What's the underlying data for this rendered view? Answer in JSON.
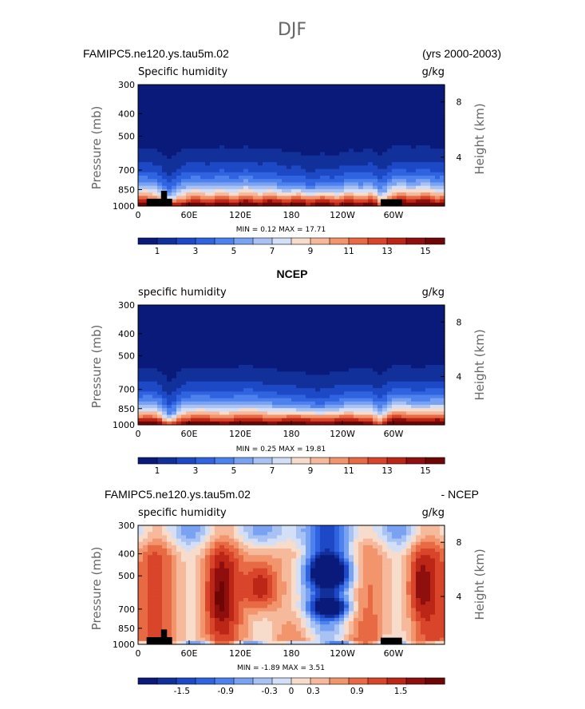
{
  "figure_title": "DJF",
  "chart_data": [
    {
      "type": "heatmap",
      "title_left": "FAMIPC5.ne120.ys.tau5m.02",
      "title_center": "",
      "title_right": "(yrs 2000-2003)",
      "variable_label": "Specific humidity",
      "units": "g/kg",
      "ylabel": "Pressure (mb)",
      "ylabel_right": "Height (km)",
      "ylim": [
        1000,
        300
      ],
      "yticks": [
        "300",
        "400",
        "500",
        "700",
        "850",
        "1000"
      ],
      "height_ticks": [
        "8",
        "4"
      ],
      "xticks": [
        "0",
        "60E",
        "120E",
        "180",
        "120W",
        "60W"
      ],
      "stats": "MIN =    0.12   MAX =    17.71",
      "colorbar_labels": [
        "1",
        "3",
        "5",
        "7",
        "9",
        "11",
        "13",
        "15"
      ],
      "colorbar_min": 0,
      "colorbar_max": 16,
      "kind": "q"
    },
    {
      "type": "heatmap",
      "title_left": "",
      "title_center": "NCEP",
      "title_right": "",
      "variable_label": "specific humidity",
      "units": "g/kg",
      "ylabel": "Pressure (mb)",
      "ylabel_right": "Height (km)",
      "ylim": [
        1000,
        300
      ],
      "yticks": [
        "300",
        "400",
        "500",
        "700",
        "850",
        "1000"
      ],
      "height_ticks": [
        "8",
        "4"
      ],
      "xticks": [
        "0",
        "60E",
        "120E",
        "180",
        "120W",
        "60W"
      ],
      "stats": "MIN =    0.25   MAX =    19.81",
      "colorbar_labels": [
        "1",
        "3",
        "5",
        "7",
        "9",
        "11",
        "13",
        "15"
      ],
      "colorbar_min": 0,
      "colorbar_max": 16,
      "kind": "q"
    },
    {
      "type": "heatmap",
      "title_left": "FAMIPC5.ne120.ys.tau5m.02",
      "title_center": "",
      "title_right": "- NCEP",
      "variable_label": "specific humidity",
      "units": "g/kg",
      "ylabel": "Pressure (mb)",
      "ylabel_right": "Height (km)",
      "ylim": [
        1000,
        300
      ],
      "yticks": [
        "300",
        "400",
        "500",
        "700",
        "850",
        "1000"
      ],
      "height_ticks": [
        "8",
        "4"
      ],
      "xticks": [
        "0",
        "60E",
        "120E",
        "180",
        "120W",
        "60W"
      ],
      "stats": "MIN =   -1.89   MAX =    3.51",
      "colorbar_labels": [
        "-1.5",
        "-0.9",
        "-0.3",
        "0",
        "0.3",
        "0.9",
        "1.5"
      ],
      "colorbar_min": -2.1,
      "colorbar_max": 2.1,
      "kind": "diff"
    }
  ],
  "colors": {
    "palette": [
      "#0a1a7a",
      "#12309a",
      "#1d49c6",
      "#2f63e0",
      "#4d82ee",
      "#7aa2f2",
      "#a8c2f4",
      "#d2dff6",
      "#f8dccb",
      "#f6b99b",
      "#f2946c",
      "#e86a45",
      "#d8452a",
      "#bb2616",
      "#8f0e0e",
      "#6e0606"
    ],
    "mountain": "#000000"
  }
}
